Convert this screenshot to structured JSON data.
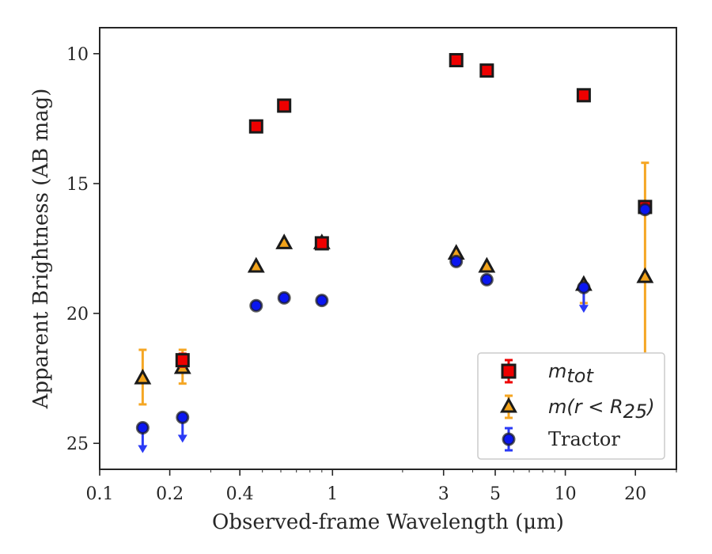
{
  "chart_data": {
    "type": "scatter",
    "xscale": "log",
    "yinverted": true,
    "xlim": [
      0.1,
      30
    ],
    "ylim": [
      9.0,
      26.0
    ],
    "xlabel": "Observed-frame Wavelength (μm)",
    "ylabel": "Apparent Brightness (AB mag)",
    "xticks": [
      {
        "value": 0.1,
        "label": "0.1"
      },
      {
        "value": 0.2,
        "label": "0.2"
      },
      {
        "value": 0.4,
        "label": "0.4"
      },
      {
        "value": 1,
        "label": "1"
      },
      {
        "value": 3,
        "label": "3"
      },
      {
        "value": 5,
        "label": "5"
      },
      {
        "value": 10,
        "label": "10"
      },
      {
        "value": 20,
        "label": "20"
      }
    ],
    "yticks": [
      {
        "value": 10,
        "label": "10"
      },
      {
        "value": 15,
        "label": "15"
      },
      {
        "value": 20,
        "label": "20"
      },
      {
        "value": 25,
        "label": "25"
      }
    ],
    "legend": {
      "placement": "lower-right"
    },
    "series": [
      {
        "name": "m_tot",
        "legend_main": "m",
        "legend_sub": "tot",
        "marker": "square",
        "fill": "#ee0000",
        "errcolor": "#ee0000",
        "points": [
          {
            "x": 0.227,
            "y": 21.8,
            "yerr": [
              0.25,
              0.25
            ],
            "upper_limit": false
          },
          {
            "x": 0.47,
            "y": 12.8,
            "yerr": [
              0,
              0
            ],
            "upper_limit": false
          },
          {
            "x": 0.62,
            "y": 12.0,
            "yerr": [
              0,
              0
            ],
            "upper_limit": false
          },
          {
            "x": 0.9,
            "y": 17.3,
            "yerr": [
              0,
              0
            ],
            "upper_limit": false
          },
          {
            "x": 3.4,
            "y": 10.25,
            "yerr": [
              0,
              0
            ],
            "upper_limit": false
          },
          {
            "x": 4.6,
            "y": 10.65,
            "yerr": [
              0,
              0
            ],
            "upper_limit": false
          },
          {
            "x": 12.0,
            "y": 11.6,
            "yerr": [
              0,
              0
            ],
            "upper_limit": false
          },
          {
            "x": 22.0,
            "y": 15.9,
            "yerr": [
              0.2,
              0.2
            ],
            "upper_limit": false
          }
        ]
      },
      {
        "name": "m(r < R25)",
        "legend_main": "m(r < R",
        "legend_sub": "25",
        "legend_close": ")",
        "marker": "triangle",
        "fill": "#f2a31a",
        "errcolor": "#f5a623",
        "points": [
          {
            "x": 0.153,
            "y": 22.5,
            "yerr": [
              1.1,
              1.0
            ],
            "upper_limit": false
          },
          {
            "x": 0.227,
            "y": 22.1,
            "yerr": [
              0.7,
              0.6
            ],
            "upper_limit": false
          },
          {
            "x": 0.47,
            "y": 18.2,
            "yerr": [
              0,
              0
            ],
            "upper_limit": false
          },
          {
            "x": 0.62,
            "y": 17.3,
            "yerr": [
              0,
              0
            ],
            "upper_limit": false
          },
          {
            "x": 0.9,
            "y": 17.3,
            "yerr": [
              0,
              0
            ],
            "upper_limit": false
          },
          {
            "x": 3.4,
            "y": 17.7,
            "yerr": [
              0,
              0
            ],
            "upper_limit": false
          },
          {
            "x": 4.6,
            "y": 18.2,
            "yerr": [
              0,
              0
            ],
            "upper_limit": false
          },
          {
            "x": 12.0,
            "y": 18.9,
            "yerr": [
              0,
              0.7
            ],
            "upper_limit": false
          },
          {
            "x": 22.0,
            "y": 18.6,
            "yerr": [
              4.4,
              4.4
            ],
            "upper_limit": false
          }
        ]
      },
      {
        "name": "Tractor",
        "legend_main": "Tractor",
        "marker": "circle",
        "fill": "#0a16f0",
        "errcolor": "#2a3af5",
        "points": [
          {
            "x": 0.153,
            "y": 24.4,
            "upper_limit": true
          },
          {
            "x": 0.227,
            "y": 24.0,
            "upper_limit": true
          },
          {
            "x": 0.47,
            "y": 19.7,
            "upper_limit": false
          },
          {
            "x": 0.62,
            "y": 19.4,
            "upper_limit": false
          },
          {
            "x": 0.9,
            "y": 19.5,
            "upper_limit": false
          },
          {
            "x": 3.4,
            "y": 18.0,
            "upper_limit": false
          },
          {
            "x": 4.6,
            "y": 18.7,
            "upper_limit": false
          },
          {
            "x": 12.0,
            "y": 19.0,
            "upper_limit": true
          },
          {
            "x": 22.0,
            "y": 16.0,
            "upper_limit": false
          }
        ]
      }
    ]
  }
}
